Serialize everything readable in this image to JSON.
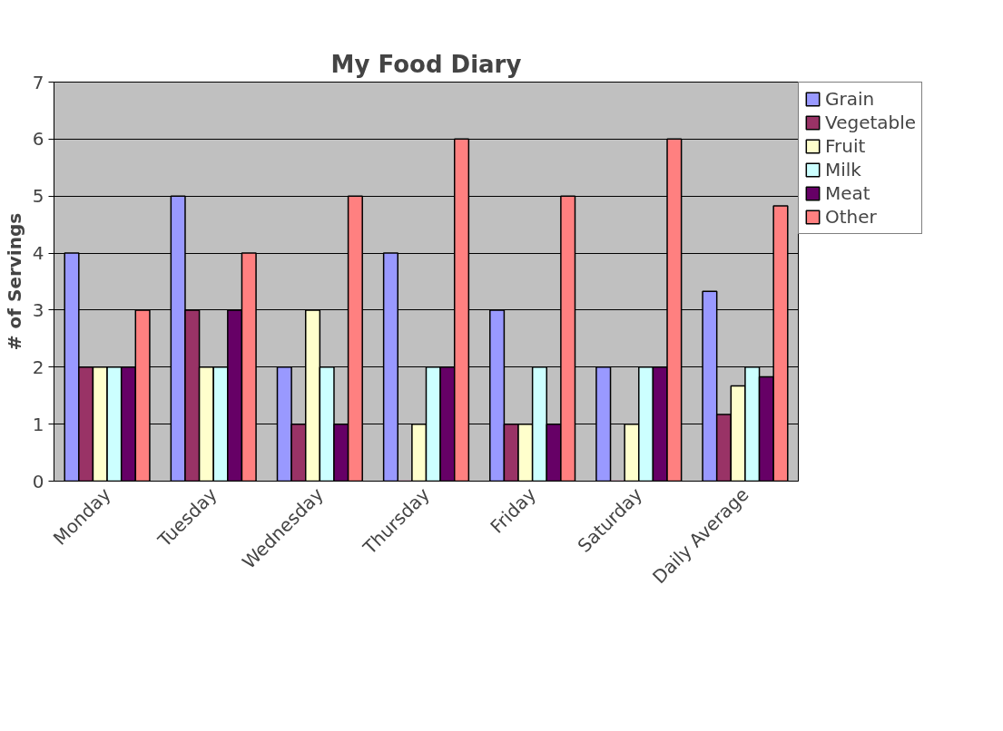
{
  "chart_data": {
    "type": "bar",
    "title": "My Food Diary",
    "ylabel": "# of Servings",
    "categories": [
      "Monday",
      "Tuesday",
      "Wednesday",
      "Thursday",
      "Friday",
      "Saturday",
      "Daily Average"
    ],
    "series": [
      {
        "name": "Grain",
        "color": "#9999ff",
        "values": [
          4,
          5,
          2,
          4,
          3,
          2,
          3.33
        ]
      },
      {
        "name": "Vegetable",
        "color": "#993366",
        "values": [
          2,
          3,
          1,
          0,
          1,
          0,
          1.17
        ]
      },
      {
        "name": "Fruit",
        "color": "#ffffcc",
        "values": [
          2,
          2,
          3,
          1,
          1,
          1,
          1.67
        ]
      },
      {
        "name": "Milk",
        "color": "#ccffff",
        "values": [
          2,
          2,
          2,
          2,
          2,
          2,
          2
        ]
      },
      {
        "name": "Meat",
        "color": "#660066",
        "values": [
          2,
          3,
          1,
          2,
          1,
          2,
          1.83
        ]
      },
      {
        "name": "Other",
        "color": "#ff8080",
        "values": [
          3,
          4,
          5,
          6,
          5,
          6,
          4.83
        ]
      }
    ],
    "ylim": [
      0,
      7
    ],
    "yticks": [
      0,
      1,
      2,
      3,
      4,
      5,
      6,
      7
    ],
    "grid": "y",
    "legend": "top right"
  }
}
